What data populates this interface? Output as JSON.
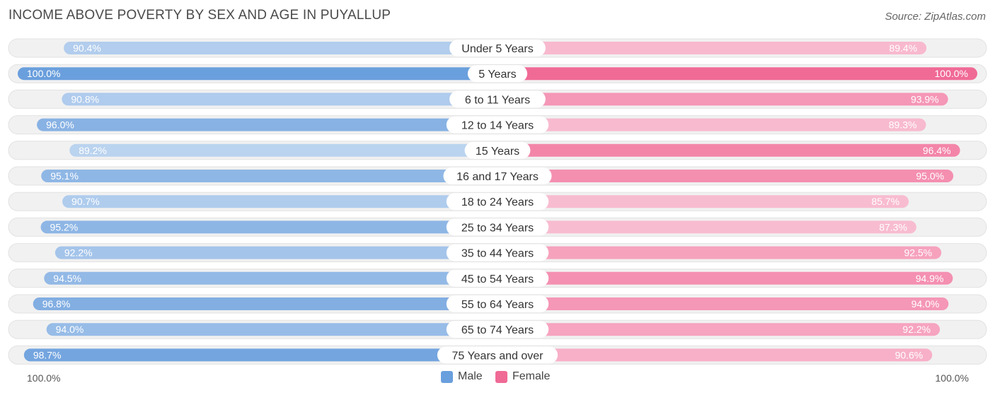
{
  "title": "INCOME ABOVE POVERTY BY SEX AND AGE IN PUYALLUP",
  "source": "Source: ZipAtlas.com",
  "colors": {
    "male": "#6a9fdd",
    "female": "#f06a96",
    "track": "#f0f0f0"
  },
  "axis": {
    "left_label": "100.0%",
    "right_label": "100.0%"
  },
  "legend": {
    "male": "Male",
    "female": "Female"
  },
  "chart_data": {
    "type": "bar",
    "orientation": "horizontal-diverging",
    "categories": [
      "Under 5 Years",
      "5 Years",
      "6 to 11 Years",
      "12 to 14 Years",
      "15 Years",
      "16 and 17 Years",
      "18 to 24 Years",
      "25 to 34 Years",
      "35 to 44 Years",
      "45 to 54 Years",
      "55 to 64 Years",
      "65 to 74 Years",
      "75 Years and over"
    ],
    "series": [
      {
        "name": "Male",
        "values": [
          90.4,
          100.0,
          90.8,
          96.0,
          89.2,
          95.1,
          90.7,
          95.2,
          92.2,
          94.5,
          96.8,
          94.0,
          98.7
        ],
        "labels": [
          "90.4%",
          "100.0%",
          "90.8%",
          "96.0%",
          "89.2%",
          "95.1%",
          "90.7%",
          "95.2%",
          "92.2%",
          "94.5%",
          "96.8%",
          "94.0%",
          "98.7%"
        ]
      },
      {
        "name": "Female",
        "values": [
          89.4,
          100.0,
          93.9,
          89.3,
          96.4,
          95.0,
          85.7,
          87.3,
          92.5,
          94.9,
          94.0,
          92.2,
          90.6
        ],
        "labels": [
          "89.4%",
          "100.0%",
          "93.9%",
          "89.3%",
          "96.4%",
          "95.0%",
          "85.7%",
          "87.3%",
          "92.5%",
          "94.9%",
          "94.0%",
          "92.2%",
          "90.6%"
        ]
      }
    ],
    "xlim": [
      0,
      100
    ]
  }
}
